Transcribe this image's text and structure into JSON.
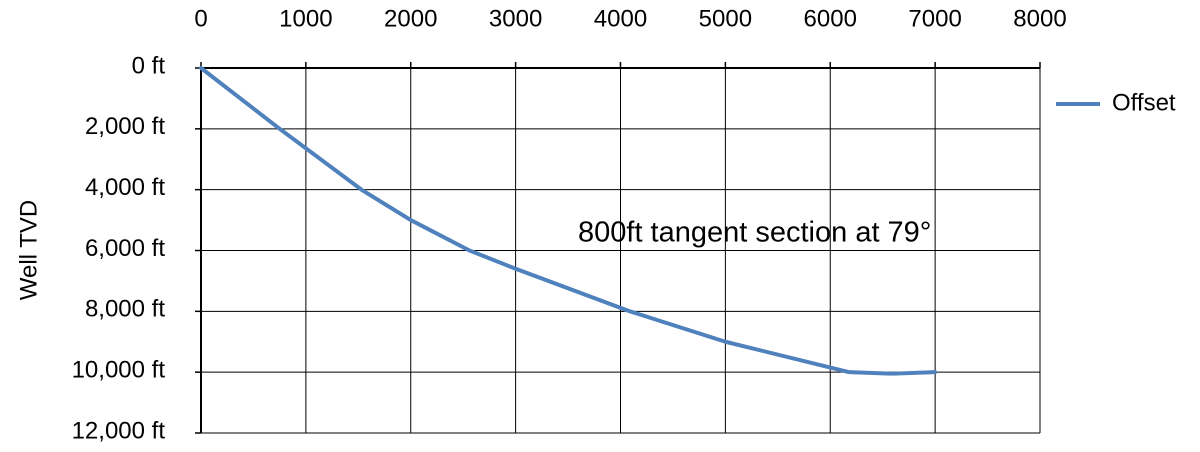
{
  "chart_data": {
    "type": "line",
    "y_label": "Well TVD",
    "annotation": "800ft  tangent section at 79°",
    "x": [
      0,
      750,
      1530,
      2000,
      2560,
      3000,
      4090,
      5000,
      6180,
      6600,
      7000
    ],
    "series": [
      {
        "name": "Offset",
        "color": "#4f81bd",
        "values": [
          0,
          2000,
          4000,
          5000,
          6000,
          6600,
          8000,
          9000,
          10000,
          10050,
          10000
        ]
      }
    ],
    "xlim": [
      0,
      8000
    ],
    "xticks": [
      0,
      1000,
      2000,
      3000,
      4000,
      5000,
      6000,
      7000,
      8000
    ],
    "ylim": [
      0,
      12000
    ],
    "yticks": [
      {
        "value": 0,
        "label": "0 ft"
      },
      {
        "value": 2000,
        "label": "2,000 ft"
      },
      {
        "value": 4000,
        "label": "4,000 ft"
      },
      {
        "value": 6000,
        "label": "6,000 ft"
      },
      {
        "value": 8000,
        "label": "8,000 ft"
      },
      {
        "value": 10000,
        "label": "10,000 ft"
      },
      {
        "value": 12000,
        "label": "12,000 ft"
      }
    ],
    "y_reversed": true,
    "x_axis_position": "top",
    "grid": true,
    "legend": "right"
  }
}
